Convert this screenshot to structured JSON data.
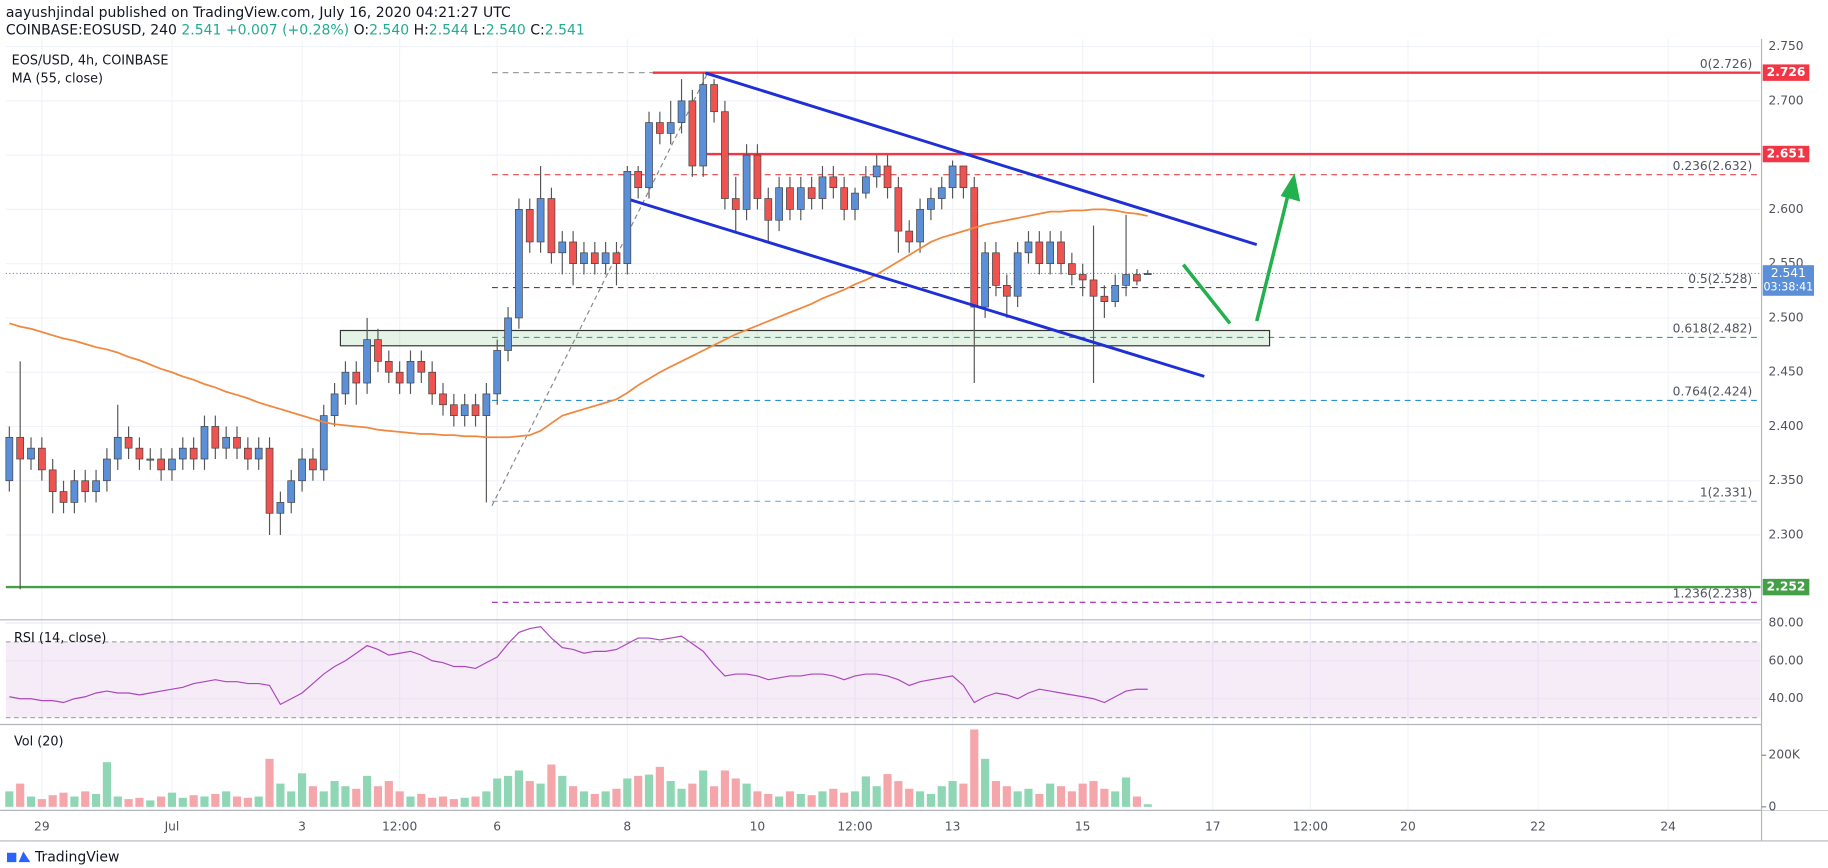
{
  "header": {
    "publisher": "aayushjindal",
    "published": "published on TradingView.com, July 16, 2020 04:21:27 UTC",
    "symbol": "COINBASE:EOSUSD, 240",
    "last": "2.541",
    "change": "+0.007 (+0.28%)",
    "ohlc": [
      {
        "key": "O:",
        "value": "2.540"
      },
      {
        "key": "H:",
        "value": "2.544"
      },
      {
        "key": "L:",
        "value": "2.540"
      },
      {
        "key": "C:",
        "value": "2.541"
      }
    ]
  },
  "footer": {
    "brand": "TradingView"
  },
  "chart_data": {
    "type": "candlestick",
    "title": "EOS/USD, 4h, COINBASE",
    "categories": [
      null,
      null,
      null,
      "29",
      null,
      null,
      null,
      null,
      null,
      null,
      null,
      null,
      null,
      null,
      null,
      "Jul",
      null,
      null,
      null,
      null,
      null,
      null,
      null,
      null,
      null,
      null,
      null,
      "3",
      null,
      null,
      null,
      null,
      null,
      null,
      null,
      null,
      "12:00",
      null,
      null,
      null,
      null,
      null,
      null,
      null,
      null,
      "6",
      null,
      null,
      null,
      null,
      null,
      null,
      null,
      null,
      null,
      null,
      null,
      "8",
      null,
      null,
      null,
      null,
      null,
      null,
      null,
      null,
      null,
      null,
      null,
      "10",
      null,
      null,
      null,
      null,
      null,
      null,
      null,
      null,
      "12:00",
      null,
      null,
      null,
      null,
      null,
      null,
      null,
      null,
      "13",
      null,
      null,
      null,
      null,
      null,
      null,
      null,
      null,
      null,
      null,
      null,
      "15",
      null,
      null,
      null,
      null,
      null,
      null
    ],
    "future_categories": [
      null,
      null,
      null,
      null,
      null,
      "17",
      null,
      null,
      null,
      null,
      null,
      null,
      null,
      null,
      "12:00",
      null,
      null,
      null,
      null,
      null,
      null,
      null,
      null,
      "20",
      null,
      null,
      null,
      null,
      null,
      null,
      null,
      null,
      null,
      null,
      null,
      "22",
      null,
      null,
      null,
      null,
      null,
      null,
      null,
      null,
      null,
      null,
      null,
      "24",
      null,
      null,
      null,
      null,
      null,
      null,
      null,
      null
    ],
    "open": [
      2.35,
      2.39,
      2.37,
      2.38,
      2.36,
      2.34,
      2.33,
      2.35,
      2.34,
      2.35,
      2.37,
      2.39,
      2.38,
      2.37,
      2.37,
      2.36,
      2.37,
      2.38,
      2.37,
      2.4,
      2.38,
      2.39,
      2.38,
      2.37,
      2.38,
      2.32,
      2.33,
      2.35,
      2.37,
      2.36,
      2.41,
      2.43,
      2.45,
      2.44,
      2.48,
      2.46,
      2.45,
      2.44,
      2.46,
      2.45,
      2.43,
      2.42,
      2.41,
      2.42,
      2.41,
      2.43,
      2.47,
      2.5,
      2.6,
      2.57,
      2.61,
      2.56,
      2.57,
      2.55,
      2.56,
      2.55,
      2.56,
      2.55,
      2.635,
      2.62,
      2.68,
      2.67,
      2.68,
      2.7,
      2.64,
      2.715,
      2.69,
      2.61,
      2.6,
      2.65,
      2.61,
      2.59,
      2.62,
      2.6,
      2.62,
      2.61,
      2.63,
      2.62,
      2.6,
      2.615,
      2.63,
      2.64,
      2.62,
      2.58,
      2.57,
      2.6,
      2.61,
      2.62,
      2.64,
      2.62,
      2.51,
      2.56,
      2.53,
      2.52,
      2.56,
      2.57,
      2.55,
      2.57,
      2.55,
      2.54,
      2.535,
      2.52,
      2.515,
      2.53,
      2.54,
      2.54
    ],
    "high": [
      2.4,
      2.46,
      2.39,
      2.39,
      2.37,
      2.35,
      2.36,
      2.36,
      2.36,
      2.38,
      2.42,
      2.4,
      2.39,
      2.38,
      2.38,
      2.38,
      2.39,
      2.39,
      2.41,
      2.41,
      2.4,
      2.4,
      2.39,
      2.39,
      2.39,
      2.34,
      2.36,
      2.38,
      2.38,
      2.42,
      2.44,
      2.46,
      2.46,
      2.5,
      2.49,
      2.47,
      2.46,
      2.47,
      2.47,
      2.46,
      2.44,
      2.43,
      2.43,
      2.43,
      2.44,
      2.48,
      2.51,
      2.61,
      2.61,
      2.64,
      2.62,
      2.58,
      2.58,
      2.57,
      2.57,
      2.57,
      2.57,
      2.64,
      2.64,
      2.69,
      2.69,
      2.7,
      2.72,
      2.71,
      2.726,
      2.72,
      2.7,
      2.63,
      2.66,
      2.66,
      2.62,
      2.63,
      2.63,
      2.63,
      2.63,
      2.64,
      2.64,
      2.63,
      2.62,
      2.64,
      2.65,
      2.65,
      2.63,
      2.59,
      2.61,
      2.62,
      2.63,
      2.645,
      2.64,
      2.63,
      2.57,
      2.57,
      2.54,
      2.57,
      2.58,
      2.58,
      2.58,
      2.58,
      2.56,
      2.55,
      2.585,
      2.53,
      2.54,
      2.595,
      2.545,
      2.544
    ],
    "low": [
      2.34,
      2.25,
      2.36,
      2.35,
      2.32,
      2.32,
      2.32,
      2.33,
      2.33,
      2.34,
      2.36,
      2.37,
      2.36,
      2.36,
      2.35,
      2.35,
      2.36,
      2.36,
      2.36,
      2.37,
      2.37,
      2.37,
      2.36,
      2.36,
      2.3,
      2.3,
      2.32,
      2.34,
      2.35,
      2.35,
      2.4,
      2.42,
      2.42,
      2.43,
      2.45,
      2.44,
      2.43,
      2.43,
      2.44,
      2.42,
      2.41,
      2.4,
      2.4,
      2.4,
      2.33,
      2.42,
      2.46,
      2.49,
      2.56,
      2.56,
      2.55,
      2.54,
      2.53,
      2.54,
      2.54,
      2.54,
      2.53,
      2.54,
      2.61,
      2.61,
      2.66,
      2.66,
      2.67,
      2.63,
      2.63,
      2.68,
      2.6,
      2.58,
      2.59,
      2.6,
      2.57,
      2.58,
      2.59,
      2.59,
      2.6,
      2.6,
      2.61,
      2.59,
      2.59,
      2.61,
      2.62,
      2.61,
      2.56,
      2.56,
      2.56,
      2.59,
      2.6,
      2.61,
      2.61,
      2.44,
      2.5,
      2.52,
      2.5,
      2.51,
      2.55,
      2.54,
      2.54,
      2.54,
      2.53,
      2.52,
      2.44,
      2.5,
      2.51,
      2.52,
      2.53,
      2.54
    ],
    "close": [
      2.39,
      2.37,
      2.38,
      2.36,
      2.34,
      2.33,
      2.35,
      2.34,
      2.35,
      2.37,
      2.39,
      2.38,
      2.37,
      2.37,
      2.36,
      2.37,
      2.38,
      2.37,
      2.4,
      2.38,
      2.39,
      2.38,
      2.37,
      2.38,
      2.32,
      2.33,
      2.35,
      2.37,
      2.36,
      2.41,
      2.43,
      2.45,
      2.44,
      2.48,
      2.46,
      2.45,
      2.44,
      2.46,
      2.45,
      2.43,
      2.42,
      2.41,
      2.42,
      2.41,
      2.43,
      2.47,
      2.5,
      2.6,
      2.57,
      2.61,
      2.56,
      2.57,
      2.55,
      2.56,
      2.55,
      2.56,
      2.55,
      2.635,
      2.62,
      2.68,
      2.67,
      2.68,
      2.7,
      2.64,
      2.715,
      2.69,
      2.61,
      2.6,
      2.65,
      2.61,
      2.59,
      2.62,
      2.6,
      2.62,
      2.61,
      2.63,
      2.62,
      2.6,
      2.615,
      2.63,
      2.64,
      2.62,
      2.58,
      2.57,
      2.6,
      2.61,
      2.62,
      2.64,
      2.62,
      2.51,
      2.56,
      2.53,
      2.52,
      2.56,
      2.57,
      2.55,
      2.57,
      2.55,
      2.54,
      2.535,
      2.52,
      2.515,
      2.53,
      2.54,
      2.534,
      2.541
    ],
    "up_color": "#5b8fd8",
    "down_color": "#ef5350",
    "ylim": [
      2.224,
      2.755
    ],
    "yticks": [
      {
        "value": 2.3,
        "label": "2.300"
      },
      {
        "value": 2.35,
        "label": "2.350"
      },
      {
        "value": 2.4,
        "label": "2.400"
      },
      {
        "value": 2.45,
        "label": "2.450"
      },
      {
        "value": 2.5,
        "label": "2.500"
      },
      {
        "value": 2.55,
        "label": "2.550"
      },
      {
        "value": 2.6,
        "label": "2.600"
      },
      {
        "value": 2.65,
        "label": "2.650"
      },
      {
        "value": 2.7,
        "label": "2.700"
      },
      {
        "value": 2.75,
        "label": "2.750"
      }
    ],
    "grid": true,
    "series": [
      {
        "name": "MA (55, close)",
        "color": "#f0883e",
        "values": [
          2.495,
          2.492,
          2.49,
          2.487,
          2.484,
          2.481,
          2.479,
          2.476,
          2.473,
          2.471,
          2.468,
          2.464,
          2.461,
          2.457,
          2.453,
          2.45,
          2.446,
          2.443,
          2.439,
          2.436,
          2.432,
          2.429,
          2.426,
          2.422,
          2.419,
          2.416,
          2.413,
          2.41,
          2.407,
          2.404,
          2.402,
          2.401,
          2.4,
          2.399,
          2.397,
          2.396,
          2.395,
          2.394,
          2.393,
          2.393,
          2.392,
          2.392,
          2.391,
          2.391,
          2.39,
          2.39,
          2.39,
          2.391,
          2.392,
          2.396,
          2.403,
          2.41,
          2.413,
          2.416,
          2.419,
          2.422,
          2.425,
          2.431,
          2.438,
          2.444,
          2.45,
          2.455,
          2.46,
          2.465,
          2.47,
          2.475,
          2.48,
          2.485,
          2.489,
          2.493,
          2.497,
          2.501,
          2.505,
          2.509,
          2.513,
          2.518,
          2.522,
          2.526,
          2.531,
          2.535,
          2.54,
          2.546,
          2.552,
          2.558,
          2.564,
          2.57,
          2.574,
          2.577,
          2.58,
          2.583,
          2.586,
          2.588,
          2.59,
          2.592,
          2.594,
          2.596,
          2.598,
          2.598,
          2.599,
          2.599,
          2.6,
          2.6,
          2.599,
          2.597,
          2.596,
          2.594
        ]
      }
    ],
    "price_lines": [
      {
        "value": 2.726,
        "color": "#f23645"
      },
      {
        "value": 2.651,
        "color": "#f23645"
      },
      {
        "value": 2.252,
        "color": "#43a047"
      }
    ],
    "last_price": {
      "value": 2.541,
      "countdown": "03:38:41",
      "color": "#5b8fd8"
    },
    "fib_levels": [
      {
        "value": 2.726,
        "label": "0(2.726)",
        "color": "#9e9e9e"
      },
      {
        "value": 2.632,
        "label": "0.236(2.632)",
        "color": "#e0474c"
      },
      {
        "value": 2.528,
        "label": "0.5(2.528)",
        "color": "#8d2e2e"
      },
      {
        "value": 2.482,
        "label": "0.618(2.482)",
        "color": "#26a69a"
      },
      {
        "value": 2.424,
        "label": "0.764(2.424)",
        "color": "#2b8fd6"
      },
      {
        "value": 2.331,
        "label": "1(2.331)",
        "color": "#64b5f6"
      },
      {
        "value": 2.238,
        "label": "1.236(2.238)",
        "color": "#9c27b0"
      }
    ],
    "rsi": {
      "title": "RSI (14, close)",
      "color": "#ab47bc",
      "ylim": [
        27,
        81
      ],
      "band": [
        30,
        70
      ],
      "yticks": [
        {
          "value": 40,
          "label": "40.00"
        },
        {
          "value": 60,
          "label": "60.00"
        },
        {
          "value": 80,
          "label": "80.00"
        }
      ],
      "values": [
        41,
        40,
        40,
        39,
        39,
        38,
        40,
        41,
        43,
        44,
        43,
        43,
        42,
        43,
        44,
        45,
        46,
        48,
        49,
        50,
        49,
        49,
        48,
        48,
        47,
        37,
        40,
        43,
        48,
        53,
        57,
        60,
        64,
        68,
        66,
        63,
        64,
        65,
        63,
        60,
        59,
        57,
        57,
        56,
        59,
        62,
        69,
        75,
        77,
        78,
        72,
        67,
        66,
        64,
        65,
        65,
        66,
        69,
        72,
        72,
        71,
        72,
        73,
        69,
        65,
        58,
        52,
        53,
        53,
        52,
        50,
        51,
        52,
        52,
        53,
        53,
        52,
        50,
        52,
        53,
        53,
        52,
        50,
        47,
        49,
        50,
        51,
        52,
        47,
        38,
        41,
        43,
        42,
        40,
        43,
        45,
        44,
        43,
        42,
        41,
        40,
        38,
        41,
        44,
        45,
        45
      ]
    },
    "volume": {
      "title": "Vol (20)",
      "up_color": "#8fd6b5",
      "down_color": "#f4a6ab",
      "ylim": [
        0,
        310000
      ],
      "yticks": [
        0,
        {
          "value": 200000,
          "label": "200K"
        }
      ],
      "values": [
        60000,
        90000,
        40000,
        30000,
        45000,
        55000,
        40000,
        60000,
        50000,
        173000,
        40000,
        30000,
        35000,
        25000,
        40000,
        55000,
        35000,
        45000,
        40000,
        50000,
        60000,
        40000,
        35000,
        40000,
        186000,
        90000,
        60000,
        130000,
        80000,
        60000,
        100000,
        80000,
        70000,
        120000,
        80000,
        100000,
        60000,
        40000,
        50000,
        35000,
        40000,
        30000,
        35000,
        40000,
        60000,
        110000,
        120000,
        141000,
        100000,
        90000,
        164000,
        120000,
        80000,
        60000,
        50000,
        60000,
        70000,
        110000,
        120000,
        125000,
        155000,
        100000,
        70000,
        90000,
        141000,
        80000,
        141000,
        110000,
        90000,
        60000,
        50000,
        40000,
        60000,
        50000,
        45000,
        60000,
        70000,
        55000,
        60000,
        118000,
        80000,
        127000,
        100000,
        70000,
        60000,
        50000,
        80000,
        100000,
        90000,
        300000,
        186000,
        100000,
        80000,
        60000,
        70000,
        50000,
        90000,
        80000,
        60000,
        90000,
        100000,
        70000,
        60000,
        114000,
        40000,
        10000
      ]
    }
  }
}
